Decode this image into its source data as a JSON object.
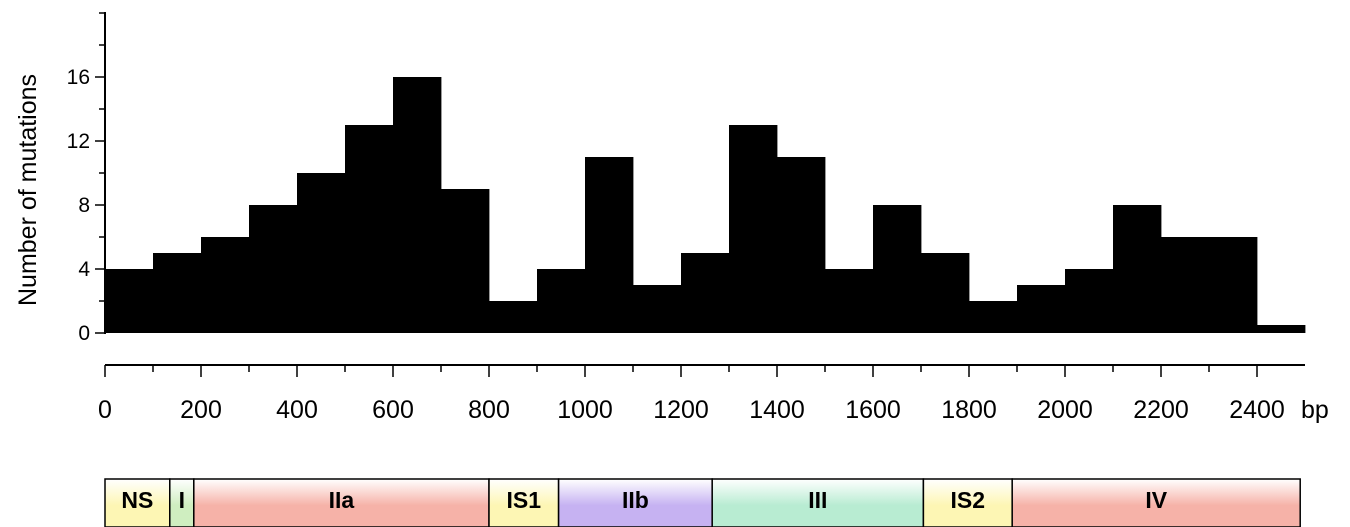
{
  "chart_data": {
    "type": "bar",
    "ylabel": "Number of mutations",
    "xlabel": "",
    "x_unit": "bp",
    "ylim": [
      0,
      20
    ],
    "y_ticks": [
      0,
      4,
      8,
      12,
      16
    ],
    "xlim": [
      0,
      2500
    ],
    "x_ticks": [
      0,
      200,
      400,
      600,
      800,
      1000,
      1200,
      1400,
      1600,
      1800,
      2000,
      2200,
      2400
    ],
    "bin_width": 100,
    "bin_starts": [
      0,
      100,
      200,
      300,
      400,
      500,
      600,
      700,
      800,
      900,
      1000,
      1100,
      1200,
      1300,
      1400,
      1500,
      1600,
      1700,
      1800,
      1900,
      2000,
      2100,
      2200,
      2300,
      2400
    ],
    "values": [
      4,
      5,
      6,
      8,
      10,
      13,
      16,
      9,
      2,
      4,
      11,
      3,
      5,
      13,
      11,
      4,
      8,
      5,
      2,
      3,
      4,
      8,
      6,
      6,
      0.5
    ],
    "grid": false,
    "bar_color": "#000000"
  },
  "domains": [
    {
      "label": "NS",
      "start": 0,
      "end": 135,
      "color": "#fdf6b4"
    },
    {
      "label": "I",
      "start": 135,
      "end": 185,
      "color": "#cfeec0"
    },
    {
      "label": "IIa",
      "start": 185,
      "end": 800,
      "color": "#f6b2a8"
    },
    {
      "label": "IS1",
      "start": 800,
      "end": 945,
      "color": "#fdf6b4"
    },
    {
      "label": "IIb",
      "start": 945,
      "end": 1265,
      "color": "#c6b2f2"
    },
    {
      "label": "III",
      "start": 1265,
      "end": 1705,
      "color": "#b8ecd2"
    },
    {
      "label": "IS2",
      "start": 1705,
      "end": 1890,
      "color": "#fdf6b4"
    },
    {
      "label": "IV",
      "start": 1890,
      "end": 2490,
      "color": "#f6b2a8"
    }
  ]
}
